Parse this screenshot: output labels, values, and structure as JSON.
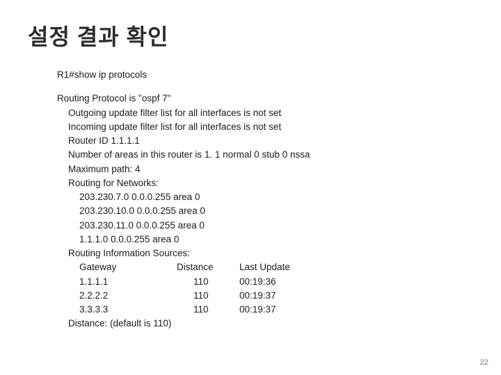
{
  "title": "설정 결과 확인",
  "command": "R1#show ip protocols",
  "lines": {
    "l1": "Routing Protocol is \"ospf 7\"",
    "l2": "Outgoing update filter list for all interfaces is not set",
    "l3": "Incoming update filter list for all interfaces is not set",
    "l4": "Router ID 1.1.1.1",
    "l5": "Number of areas in this router is 1. 1 normal 0 stub 0 nssa",
    "l6": "Maximum path: 4",
    "l7": "Routing for Networks:",
    "l8": "203.230.7.0 0.0.0.255 area 0",
    "l9": "203.230.10.0 0.0.0.255 area 0",
    "l10": "203.230.11.0 0.0.0.255 area 0",
    "l11": "1.1.1.0 0.0.0.255 area 0",
    "l12": "Routing Information Sources:",
    "h_gw": "Gateway",
    "h_dist": "Distance",
    "h_upd": "Last Update",
    "r1_gw": "1.1.1.1",
    "r1_dist": "110",
    "r1_upd": "00:19:36",
    "r2_gw": "2.2.2.2",
    "r2_dist": "110",
    "r2_upd": "00:19:37",
    "r3_gw": "3.3.3.3",
    "r3_dist": "110",
    "r3_upd": "00:19:37",
    "l17": "Distance: (default is 110)"
  },
  "page_number": "22"
}
